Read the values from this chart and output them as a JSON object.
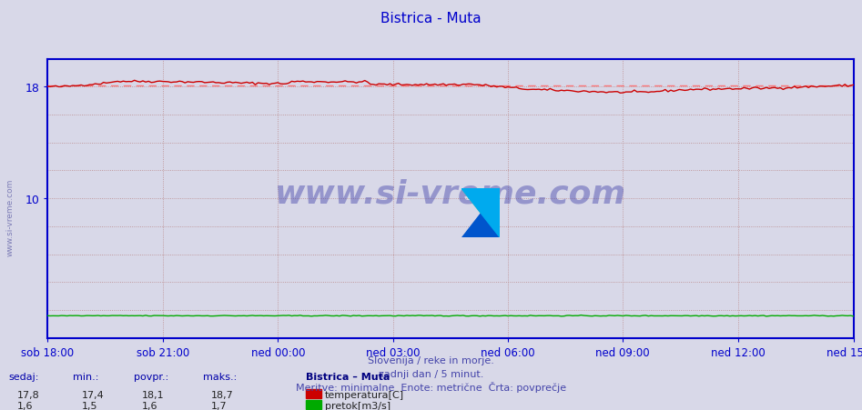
{
  "title": "Bistrica - Muta",
  "bg_color": "#d8d8e8",
  "plot_bg_color": "#d8d8e8",
  "x_labels": [
    "sob 18:00",
    "sob 21:00",
    "ned 00:00",
    "ned 03:00",
    "ned 06:00",
    "ned 09:00",
    "ned 12:00",
    "ned 15:00"
  ],
  "x_ticks_norm": [
    0.0,
    0.143,
    0.286,
    0.429,
    0.571,
    0.714,
    0.857,
    1.0
  ],
  "y_major_ticks": [
    0,
    2,
    4,
    6,
    8,
    10,
    12,
    14,
    16,
    18,
    20
  ],
  "y_min": 0,
  "y_max": 20,
  "temp_color": "#cc0000",
  "flow_color": "#00aa00",
  "avg_line_color": "#ff6666",
  "grid_color": "#bb8888",
  "axis_color": "#0000cc",
  "title_color": "#0000cc",
  "label_color": "#0000cc",
  "watermark_text": "www.si-vreme.com",
  "watermark_color": "#4444aa",
  "footer_line1": "Slovenija / reke in morje.",
  "footer_line2": "zadnji dan / 5 minut.",
  "footer_line3": "Meritve: minimalne  Enote: metrične  Črta: povprečje",
  "footer_color": "#4444aa",
  "stats_label_color": "#0000aa",
  "legend_title": "Bistrica – Muta",
  "legend_title_color": "#000080",
  "sedaj_temp": "17,8",
  "min_temp": "17,4",
  "povpr_temp": "18,1",
  "maks_temp": "18,7",
  "sedaj_flow": "1,6",
  "min_flow": "1,5",
  "povpr_flow": "1,6",
  "maks_flow": "1,7",
  "n_points": 288,
  "temp_min_val": 17.4,
  "temp_max_val": 18.7,
  "temp_avg_val": 18.1,
  "flow_min_val": 1.5,
  "flow_max_val": 1.7,
  "flow_avg_val": 1.6,
  "yticks_shown": [
    10,
    18
  ]
}
